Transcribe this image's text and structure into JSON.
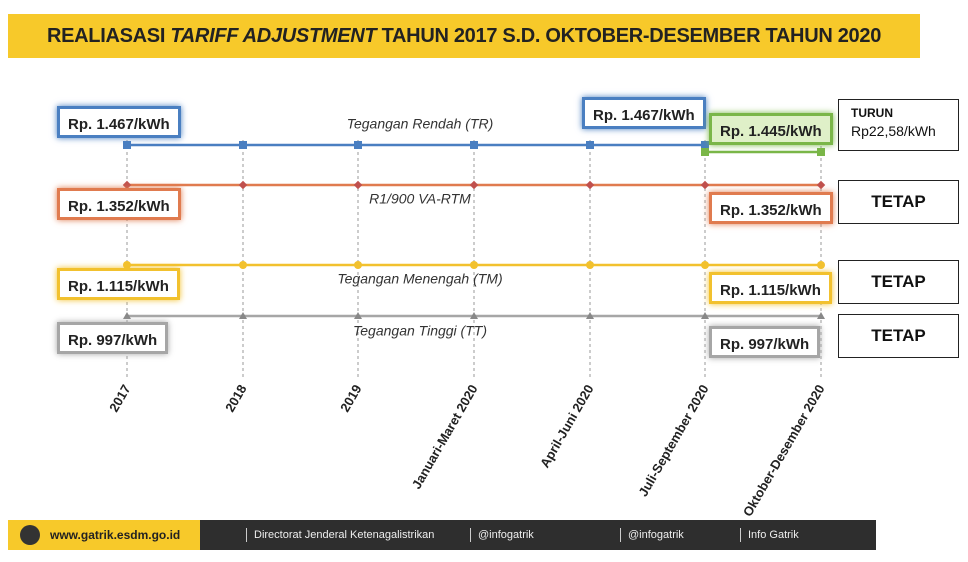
{
  "header": {
    "title_prefix": "REALIASASI ",
    "title_emphasis": "TARIFF ADJUSTMENT",
    "title_suffix": " TAHUN 2017 S.D. OKTOBER-DESEMBER TAHUN 2020"
  },
  "periods": [
    "2017",
    "2018",
    "2019",
    "Januari-Maret 2020",
    "April-Juni 2020",
    "Juli-September 2020",
    "Oktober-Desember 2020"
  ],
  "lines": [
    {
      "name": "Tegangan Rendah (TR)",
      "color": "#4a7fc1",
      "start": "Rp. 1.467/kWh",
      "middle": "Rp. 1.467/kWh",
      "end": "Rp. 1.445/kWh",
      "end_color": "#7ab648",
      "status": "TURUN",
      "status_detail": "Rp22,58/kWh"
    },
    {
      "name": "R1/900 VA-RTM",
      "color": "#e07b4f",
      "start": "Rp. 1.352/kWh",
      "end": "Rp. 1.352/kWh",
      "status": "TETAP"
    },
    {
      "name": "Tegangan Menengah (TM)",
      "color": "#f2c12e",
      "start": "Rp. 1.115/kWh",
      "end": "Rp. 1.115/kWh",
      "status": "TETAP"
    },
    {
      "name": "Tegangan Tinggi (TT)",
      "color": "#a6a6a6",
      "start": "Rp. 997/kWh",
      "end": "Rp. 997/kWh",
      "status": "TETAP"
    }
  ],
  "footer": {
    "website": "www.gatrik.esdm.go.id",
    "facebook": "Directorat Jenderal Ketenagalistrikan",
    "twitter": "@infogatrik",
    "instagram": "@infogatrik",
    "youtube": "Info Gatrik"
  }
}
